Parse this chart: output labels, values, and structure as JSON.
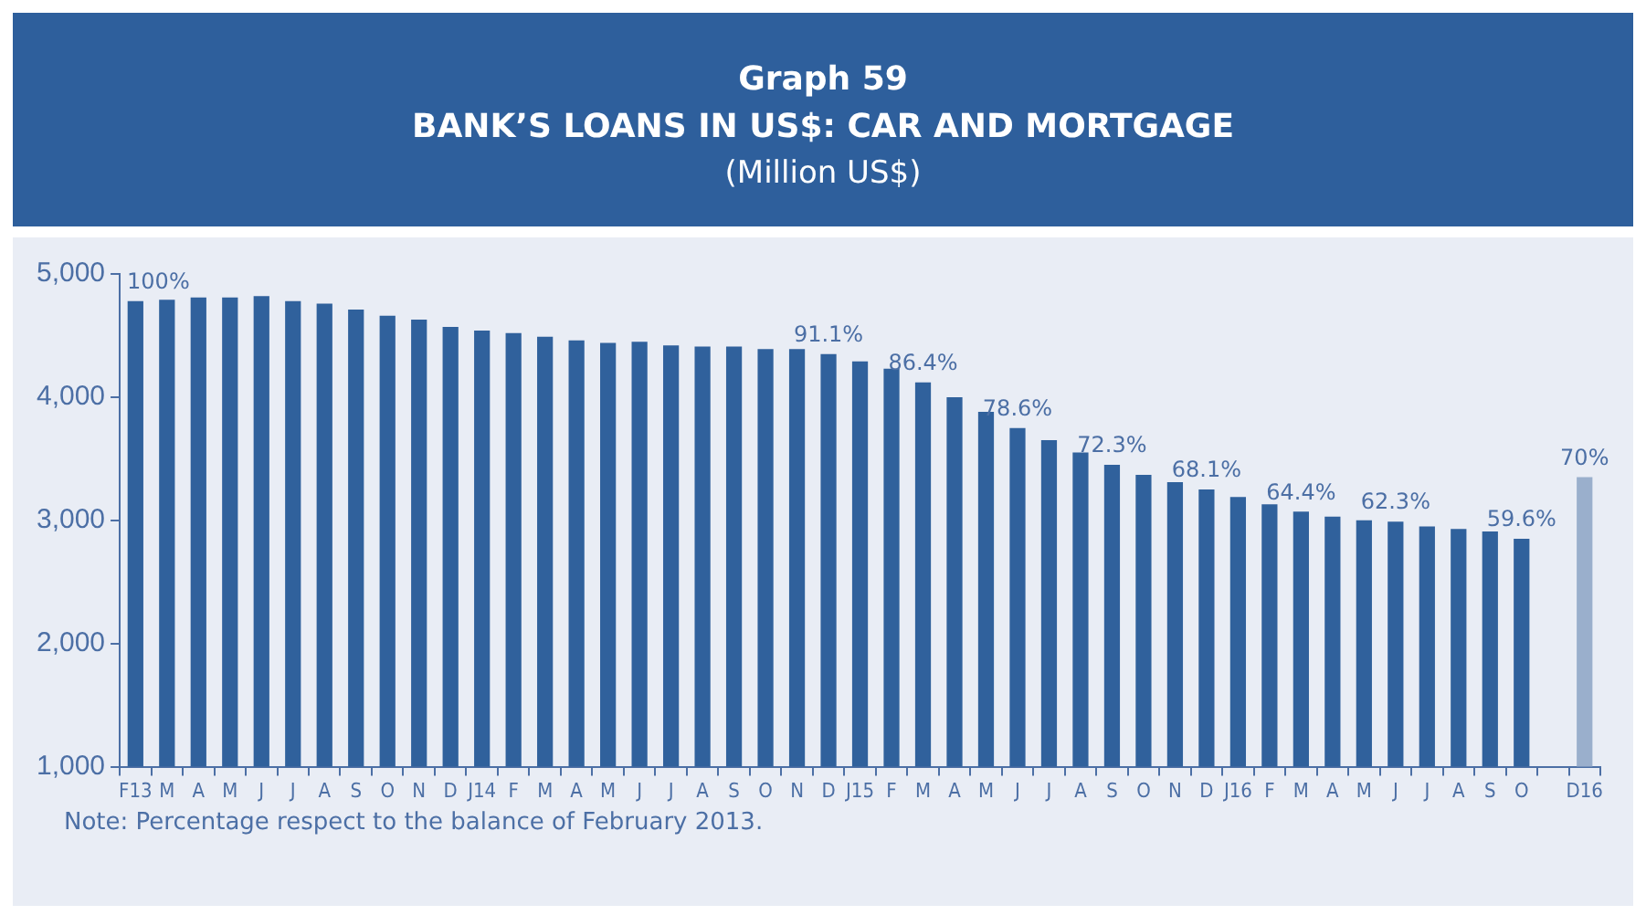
{
  "chart_data": {
    "type": "bar",
    "title": "Graph 59\nBANK’S LOANS IN US$: CAR AND MORTGAGE",
    "subtitle": "(Million US$)",
    "categories": [
      "F13",
      "M",
      "A",
      "M",
      "J",
      "J",
      "A",
      "S",
      "O",
      "N",
      "D",
      "J14",
      "F",
      "M",
      "A",
      "M",
      "J",
      "J",
      "A",
      "S",
      "O",
      "N",
      "D",
      "J15",
      "F",
      "M",
      "A",
      "M",
      "J",
      "J",
      "A",
      "S",
      "O",
      "N",
      "D",
      "J16",
      "F",
      "M",
      "A",
      "M",
      "J",
      "J",
      "A",
      "S",
      "O",
      null,
      "D16"
    ],
    "values": [
      4780,
      4790,
      4810,
      4810,
      4820,
      4780,
      4760,
      4710,
      4660,
      4630,
      4570,
      4540,
      4520,
      4490,
      4460,
      4440,
      4450,
      4420,
      4410,
      4410,
      4390,
      4390,
      4350,
      4290,
      4230,
      4120,
      4000,
      3880,
      3750,
      3650,
      3550,
      3450,
      3370,
      3310,
      3250,
      3190,
      3130,
      3070,
      3030,
      3000,
      2990,
      2950,
      2930,
      2910,
      2850,
      null,
      3350
    ],
    "colors": [
      "#30619c",
      "#30619c",
      "#30619c",
      "#30619c",
      "#30619c",
      "#30619c",
      "#30619c",
      "#30619c",
      "#30619c",
      "#30619c",
      "#30619c",
      "#30619c",
      "#30619c",
      "#30619c",
      "#30619c",
      "#30619c",
      "#30619c",
      "#30619c",
      "#30619c",
      "#30619c",
      "#30619c",
      "#30619c",
      "#30619c",
      "#30619c",
      "#30619c",
      "#30619c",
      "#30619c",
      "#30619c",
      "#30619c",
      "#30619c",
      "#30619c",
      "#30619c",
      "#30619c",
      "#30619c",
      "#30619c",
      "#30619c",
      "#30619c",
      "#30619c",
      "#30619c",
      "#30619c",
      "#30619c",
      "#30619c",
      "#30619c",
      "#30619c",
      "#30619c",
      "#30619c",
      "#9aafcc"
    ],
    "ylim": [
      1000,
      5000
    ],
    "yticks": [
      {
        "value": 1000,
        "label": "1,000"
      },
      {
        "value": 2000,
        "label": "2,000"
      },
      {
        "value": 3000,
        "label": "3,000"
      },
      {
        "value": 4000,
        "label": "4,000"
      },
      {
        "value": 5000,
        "label": "5,000"
      }
    ],
    "grid": false,
    "legend": false,
    "annotations": [
      "Note: Percentage respect to the balance of February 2013.",
      {
        "text": "100%",
        "y": 4780
      },
      {
        "text": "91.1%",
        "y": 4350
      },
      {
        "text": "86.4%",
        "y": 4120
      },
      {
        "text": "78.6%",
        "y": 3750
      },
      {
        "text": "72.3%",
        "y": 3450
      },
      {
        "text": "68.1%",
        "y": 3250
      },
      {
        "text": "64.4%",
        "y": 3070
      },
      {
        "text": "62.3%",
        "y": 2990
      },
      {
        "text": "59.6%",
        "y": 2850
      },
      {
        "text": "70%",
        "y": 3350
      }
    ]
  }
}
